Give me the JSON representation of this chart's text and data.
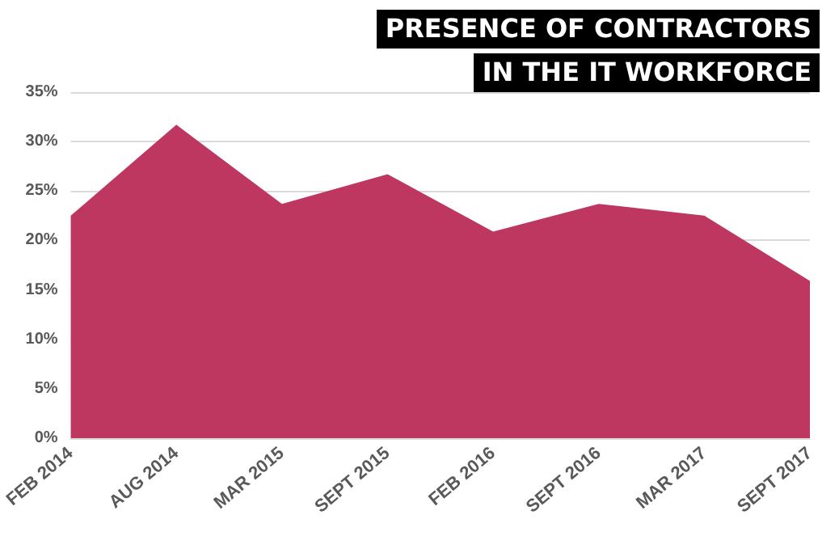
{
  "chart_data": {
    "type": "area",
    "title": "PRESENCE OF CONTRACTORS\nIN THE IT WORKFORCE",
    "categories": [
      "FEB 2014",
      "AUG 2014",
      "MAR 2015",
      "SEPT 2015",
      "FEB 2016",
      "SEPT 2016",
      "MAR 2017",
      "SEPT 2017"
    ],
    "series": [
      {
        "color": "#be3760",
        "values": [
          22.5,
          31.7,
          23.7,
          26.7,
          20.9,
          23.7,
          22.5,
          15.9
        ]
      }
    ],
    "ylim": [
      0,
      35
    ],
    "yticks": [
      {
        "value": 0,
        "label": "0%"
      },
      {
        "value": 5,
        "label": "5%"
      },
      {
        "value": 10,
        "label": "10%"
      },
      {
        "value": 15,
        "label": "15%"
      },
      {
        "value": 20,
        "label": "20%"
      },
      {
        "value": 25,
        "label": "25%"
      },
      {
        "value": 30,
        "label": "30%"
      },
      {
        "value": 35,
        "label": "35%"
      }
    ],
    "grid": "y",
    "marker": "none"
  }
}
